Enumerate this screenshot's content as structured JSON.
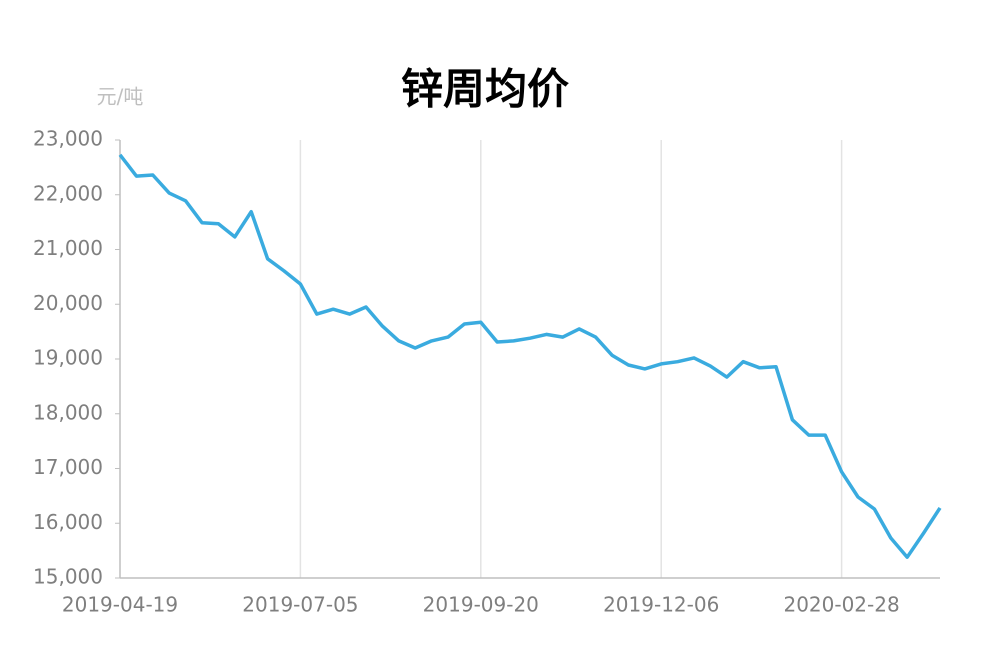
{
  "chart_data": {
    "type": "line",
    "title": "锌周均价",
    "y_label": "元/吨",
    "categories": [
      "2019-04-19",
      null,
      null,
      null,
      null,
      null,
      null,
      null,
      null,
      null,
      null,
      "2019-07-05",
      null,
      null,
      null,
      null,
      null,
      null,
      null,
      null,
      null,
      null,
      "2019-09-20",
      null,
      null,
      null,
      null,
      null,
      null,
      null,
      null,
      null,
      null,
      "2019-12-06",
      null,
      null,
      null,
      null,
      null,
      null,
      null,
      null,
      null,
      null,
      "2020-02-28",
      null,
      null,
      null,
      null,
      null,
      null
    ],
    "values": [
      22730,
      22340,
      22360,
      22030,
      21890,
      21490,
      21470,
      21230,
      21690,
      20830,
      20610,
      20370,
      19820,
      19910,
      19820,
      19950,
      19600,
      19330,
      19200,
      19330,
      19400,
      19640,
      19670,
      19310,
      19330,
      19380,
      19450,
      19400,
      19550,
      19400,
      19070,
      18890,
      18820,
      18910,
      18950,
      19020,
      18870,
      18670,
      18950,
      18840,
      18860,
      17890,
      17610,
      17610,
      16940,
      16480,
      16260,
      15730,
      15380,
      15820,
      16280
    ],
    "color": "#3aabdf",
    "ylim": [
      15000,
      23000
    ],
    "yticks": [
      {
        "value": 15000,
        "label": "15,000"
      },
      {
        "value": 16000,
        "label": "16,000"
      },
      {
        "value": 17000,
        "label": "17,000"
      },
      {
        "value": 18000,
        "label": "18,000"
      },
      {
        "value": 19000,
        "label": "19,000"
      },
      {
        "value": 20000,
        "label": "20,000"
      },
      {
        "value": 21000,
        "label": "21,000"
      },
      {
        "value": 22000,
        "label": "22,000"
      },
      {
        "value": 23000,
        "label": "23,000"
      }
    ],
    "grid": true
  }
}
